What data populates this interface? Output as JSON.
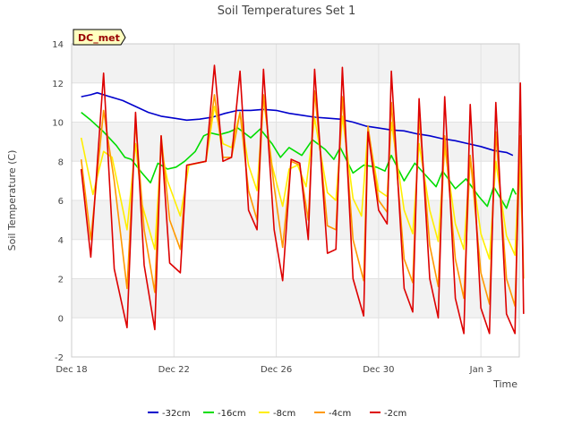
{
  "chart_data": {
    "type": "line",
    "title": "Soil Temperatures Set 1",
    "xlabel": "Time",
    "ylabel": "Soil Temperature (C)",
    "annotation": "DC_met",
    "xlim": [
      "2022-12-18 00:00",
      "2023-01-04 12:00"
    ],
    "ylim": [
      -2,
      14
    ],
    "yticks": [
      -2,
      0,
      2,
      4,
      6,
      8,
      10,
      12,
      14
    ],
    "xticks": [
      {
        "x": "2022-12-18 00:00",
        "label": "Dec 18"
      },
      {
        "x": "2022-12-22 00:00",
        "label": "Dec 22"
      },
      {
        "x": "2022-12-26 00:00",
        "label": "Dec 26"
      },
      {
        "x": "2022-12-30 00:00",
        "label": "Dec 30"
      },
      {
        "x": "2023-01-03 00:00",
        "label": "Jan 3"
      }
    ],
    "grid": true,
    "legend_position": "bottom",
    "series": [
      {
        "name": "-32cm",
        "color": "#0000cc",
        "points": [
          [
            "2022-12-18 09:00",
            11.3
          ],
          [
            "2022-12-18 18:00",
            11.4
          ],
          [
            "2022-12-19 00:00",
            11.5
          ],
          [
            "2022-12-19 12:00",
            11.3
          ],
          [
            "2022-12-20 00:00",
            11.1
          ],
          [
            "2022-12-20 12:00",
            10.8
          ],
          [
            "2022-12-21 00:00",
            10.5
          ],
          [
            "2022-12-21 12:00",
            10.3
          ],
          [
            "2022-12-22 00:00",
            10.2
          ],
          [
            "2022-12-22 12:00",
            10.1
          ],
          [
            "2022-12-23 00:00",
            10.15
          ],
          [
            "2022-12-23 12:00",
            10.25
          ],
          [
            "2022-12-24 00:00",
            10.45
          ],
          [
            "2022-12-24 12:00",
            10.6
          ],
          [
            "2022-12-25 00:00",
            10.6
          ],
          [
            "2022-12-25 12:00",
            10.65
          ],
          [
            "2022-12-26 00:00",
            10.6
          ],
          [
            "2022-12-26 12:00",
            10.45
          ],
          [
            "2022-12-27 00:00",
            10.35
          ],
          [
            "2022-12-27 12:00",
            10.25
          ],
          [
            "2022-12-28 00:00",
            10.2
          ],
          [
            "2022-12-28 12:00",
            10.15
          ],
          [
            "2022-12-29 00:00",
            10.0
          ],
          [
            "2022-12-29 12:00",
            9.8
          ],
          [
            "2022-12-30 00:00",
            9.7
          ],
          [
            "2022-12-30 12:00",
            9.6
          ],
          [
            "2022-12-31 00:00",
            9.55
          ],
          [
            "2022-12-31 12:00",
            9.4
          ],
          [
            "2023-01-01 00:00",
            9.3
          ],
          [
            "2023-01-01 12:00",
            9.15
          ],
          [
            "2023-01-02 00:00",
            9.05
          ],
          [
            "2023-01-02 12:00",
            8.9
          ],
          [
            "2023-01-03 00:00",
            8.75
          ],
          [
            "2023-01-03 12:00",
            8.55
          ],
          [
            "2023-01-04 00:00",
            8.45
          ],
          [
            "2023-01-04 06:00",
            8.3
          ]
        ]
      },
      {
        "name": "-16cm",
        "color": "#00dd00",
        "points": [
          [
            "2022-12-18 09:00",
            10.5
          ],
          [
            "2022-12-18 18:00",
            10.1
          ],
          [
            "2022-12-19 06:00",
            9.5
          ],
          [
            "2022-12-19 18:00",
            8.8
          ],
          [
            "2022-12-20 02:00",
            8.2
          ],
          [
            "2022-12-20 08:00",
            8.1
          ],
          [
            "2022-12-20 18:00",
            7.4
          ],
          [
            "2022-12-21 02:00",
            6.9
          ],
          [
            "2022-12-21 09:00",
            7.9
          ],
          [
            "2022-12-21 18:00",
            7.6
          ],
          [
            "2022-12-22 02:00",
            7.7
          ],
          [
            "2022-12-22 10:00",
            8.0
          ],
          [
            "2022-12-22 20:00",
            8.5
          ],
          [
            "2022-12-23 04:00",
            9.3
          ],
          [
            "2022-12-23 10:00",
            9.45
          ],
          [
            "2022-12-23 18:00",
            9.35
          ],
          [
            "2022-12-24 04:00",
            9.5
          ],
          [
            "2022-12-24 12:00",
            9.7
          ],
          [
            "2022-12-25 00:00",
            9.2
          ],
          [
            "2022-12-25 09:00",
            9.65
          ],
          [
            "2022-12-25 20:00",
            8.9
          ],
          [
            "2022-12-26 04:00",
            8.2
          ],
          [
            "2022-12-26 12:00",
            8.7
          ],
          [
            "2022-12-27 00:00",
            8.3
          ],
          [
            "2022-12-27 10:00",
            9.1
          ],
          [
            "2022-12-27 22:00",
            8.6
          ],
          [
            "2022-12-28 06:00",
            8.1
          ],
          [
            "2022-12-28 12:00",
            8.7
          ],
          [
            "2022-12-29 00:00",
            7.4
          ],
          [
            "2022-12-29 10:00",
            7.8
          ],
          [
            "2022-12-29 22:00",
            7.7
          ],
          [
            "2022-12-30 06:00",
            7.5
          ],
          [
            "2022-12-30 12:00",
            8.3
          ],
          [
            "2022-12-31 00:00",
            7.0
          ],
          [
            "2022-12-31 10:00",
            7.9
          ],
          [
            "2022-12-31 20:00",
            7.3
          ],
          [
            "2023-01-01 06:00",
            6.7
          ],
          [
            "2023-01-01 12:00",
            7.5
          ],
          [
            "2023-01-02 00:00",
            6.6
          ],
          [
            "2023-01-02 10:00",
            7.1
          ],
          [
            "2023-01-02 22:00",
            6.2
          ],
          [
            "2023-01-03 06:00",
            5.7
          ],
          [
            "2023-01-03 12:00",
            6.7
          ],
          [
            "2023-01-04 00:00",
            5.6
          ],
          [
            "2023-01-04 06:00",
            6.6
          ],
          [
            "2023-01-04 09:00",
            6.3
          ]
        ]
      },
      {
        "name": "-8cm",
        "color": "#ffee00",
        "points": [
          [
            "2022-12-18 09:00",
            9.2
          ],
          [
            "2022-12-18 20:00",
            6.3
          ],
          [
            "2022-12-19 06:00",
            8.5
          ],
          [
            "2022-12-19 14:00",
            8.2
          ],
          [
            "2022-12-20 04:00",
            4.5
          ],
          [
            "2022-12-20 12:00",
            8.9
          ],
          [
            "2022-12-20 18:00",
            5.8
          ],
          [
            "2022-12-21 06:00",
            3.5
          ],
          [
            "2022-12-21 12:00",
            8.7
          ],
          [
            "2022-12-21 18:00",
            7.0
          ],
          [
            "2022-12-22 06:00",
            5.2
          ],
          [
            "2022-12-22 14:00",
            7.8
          ],
          [
            "2022-12-23 06:00",
            8.0
          ],
          [
            "2022-12-23 14:00",
            10.8
          ],
          [
            "2022-12-23 22:00",
            8.9
          ],
          [
            "2022-12-24 06:00",
            8.7
          ],
          [
            "2022-12-24 14:00",
            10.5
          ],
          [
            "2022-12-24 22:00",
            7.8
          ],
          [
            "2022-12-25 06:00",
            6.5
          ],
          [
            "2022-12-25 12:00",
            11.2
          ],
          [
            "2022-12-25 20:00",
            7.8
          ],
          [
            "2022-12-26 06:00",
            5.7
          ],
          [
            "2022-12-26 12:00",
            7.6
          ],
          [
            "2022-12-26 20:00",
            7.8
          ],
          [
            "2022-12-27 04:00",
            6.7
          ],
          [
            "2022-12-27 12:00",
            10.2
          ],
          [
            "2022-12-28 00:00",
            6.4
          ],
          [
            "2022-12-28 08:00",
            6.0
          ],
          [
            "2022-12-28 14:00",
            10.3
          ],
          [
            "2022-12-29 00:00",
            6.1
          ],
          [
            "2022-12-29 08:00",
            5.2
          ],
          [
            "2022-12-29 14:00",
            9.6
          ],
          [
            "2022-12-30 00:00",
            6.5
          ],
          [
            "2022-12-30 08:00",
            6.2
          ],
          [
            "2022-12-30 12:00",
            10.0
          ],
          [
            "2022-12-31 00:00",
            5.5
          ],
          [
            "2022-12-31 08:00",
            4.3
          ],
          [
            "2022-12-31 14:00",
            8.9
          ],
          [
            "2023-01-01 00:00",
            5.5
          ],
          [
            "2023-01-01 08:00",
            3.9
          ],
          [
            "2023-01-01 14:00",
            8.7
          ],
          [
            "2023-01-02 00:00",
            4.8
          ],
          [
            "2023-01-02 08:00",
            3.5
          ],
          [
            "2023-01-02 14:00",
            8.2
          ],
          [
            "2023-01-03 00:00",
            4.3
          ],
          [
            "2023-01-03 08:00",
            3.0
          ],
          [
            "2023-01-03 14:00",
            8.0
          ],
          [
            "2023-01-04 00:00",
            4.2
          ],
          [
            "2023-01-04 08:00",
            3.2
          ],
          [
            "2023-01-04 12:00",
            8.2
          ],
          [
            "2023-01-04 15:00",
            4.3
          ]
        ]
      },
      {
        "name": "-4cm",
        "color": "#ff9900",
        "points": [
          [
            "2022-12-18 09:00",
            8.1
          ],
          [
            "2022-12-18 18:00",
            4.0
          ],
          [
            "2022-12-19 06:00",
            10.6
          ],
          [
            "2022-12-19 16:00",
            7.0
          ],
          [
            "2022-12-20 04:00",
            1.5
          ],
          [
            "2022-12-20 12:00",
            10.0
          ],
          [
            "2022-12-20 20:00",
            4.5
          ],
          [
            "2022-12-21 06:00",
            1.3
          ],
          [
            "2022-12-21 12:00",
            9.3
          ],
          [
            "2022-12-21 20:00",
            5.0
          ],
          [
            "2022-12-22 06:00",
            3.5
          ],
          [
            "2022-12-22 12:00",
            7.8
          ],
          [
            "2022-12-23 06:00",
            8.0
          ],
          [
            "2022-12-23 14:00",
            11.4
          ],
          [
            "2022-12-23 22:00",
            8.2
          ],
          [
            "2022-12-24 06:00",
            8.2
          ],
          [
            "2022-12-24 14:00",
            10.5
          ],
          [
            "2022-12-24 22:00",
            6.5
          ],
          [
            "2022-12-25 06:00",
            5.0
          ],
          [
            "2022-12-25 12:00",
            11.4
          ],
          [
            "2022-12-25 22:00",
            6.7
          ],
          [
            "2022-12-26 06:00",
            3.6
          ],
          [
            "2022-12-26 14:00",
            8.0
          ],
          [
            "2022-12-26 22:00",
            7.8
          ],
          [
            "2022-12-27 06:00",
            5.0
          ],
          [
            "2022-12-27 12:00",
            11.6
          ],
          [
            "2022-12-28 00:00",
            4.7
          ],
          [
            "2022-12-28 08:00",
            4.5
          ],
          [
            "2022-12-28 14:00",
            11.3
          ],
          [
            "2022-12-29 00:00",
            4.0
          ],
          [
            "2022-12-29 10:00",
            1.9
          ],
          [
            "2022-12-29 14:00",
            9.8
          ],
          [
            "2022-12-30 00:00",
            6.0
          ],
          [
            "2022-12-30 08:00",
            5.4
          ],
          [
            "2022-12-30 12:00",
            11.0
          ],
          [
            "2022-12-31 00:00",
            3.0
          ],
          [
            "2022-12-31 08:00",
            1.8
          ],
          [
            "2022-12-31 14:00",
            10.3
          ],
          [
            "2023-01-01 00:00",
            3.7
          ],
          [
            "2023-01-01 08:00",
            1.6
          ],
          [
            "2023-01-01 14:00",
            9.3
          ],
          [
            "2023-01-02 00:00",
            3.0
          ],
          [
            "2023-01-02 08:00",
            1.0
          ],
          [
            "2023-01-02 14:00",
            8.3
          ],
          [
            "2023-01-03 00:00",
            2.3
          ],
          [
            "2023-01-03 08:00",
            0.7
          ],
          [
            "2023-01-03 14:00",
            9.5
          ],
          [
            "2023-01-04 00:00",
            2.0
          ],
          [
            "2023-01-04 08:00",
            0.6
          ],
          [
            "2023-01-04 13:00",
            9.3
          ],
          [
            "2023-01-04 16:00",
            2.0
          ]
        ]
      },
      {
        "name": "-2cm",
        "color": "#dd0000",
        "points": [
          [
            "2022-12-18 09:00",
            7.6
          ],
          [
            "2022-12-18 18:00",
            3.1
          ],
          [
            "2022-12-19 06:00",
            12.5
          ],
          [
            "2022-12-19 16:00",
            2.5
          ],
          [
            "2022-12-20 04:00",
            -0.5
          ],
          [
            "2022-12-20 12:00",
            10.5
          ],
          [
            "2022-12-20 20:00",
            2.7
          ],
          [
            "2022-12-21 06:00",
            -0.6
          ],
          [
            "2022-12-21 12:00",
            9.3
          ],
          [
            "2022-12-21 20:00",
            2.8
          ],
          [
            "2022-12-22 06:00",
            2.3
          ],
          [
            "2022-12-22 12:00",
            7.8
          ],
          [
            "2022-12-23 06:00",
            8.0
          ],
          [
            "2022-12-23 14:00",
            12.9
          ],
          [
            "2022-12-23 22:00",
            8.0
          ],
          [
            "2022-12-24 06:00",
            8.2
          ],
          [
            "2022-12-24 14:00",
            12.6
          ],
          [
            "2022-12-24 22:00",
            5.5
          ],
          [
            "2022-12-25 06:00",
            4.5
          ],
          [
            "2022-12-25 12:00",
            12.7
          ],
          [
            "2022-12-25 22:00",
            4.5
          ],
          [
            "2022-12-26 06:00",
            1.9
          ],
          [
            "2022-12-26 14:00",
            8.1
          ],
          [
            "2022-12-26 22:00",
            7.9
          ],
          [
            "2022-12-27 06:00",
            4.0
          ],
          [
            "2022-12-27 12:00",
            12.7
          ],
          [
            "2022-12-28 00:00",
            3.3
          ],
          [
            "2022-12-28 08:00",
            3.5
          ],
          [
            "2022-12-28 14:00",
            12.8
          ],
          [
            "2022-12-29 00:00",
            2.0
          ],
          [
            "2022-12-29 10:00",
            0.1
          ],
          [
            "2022-12-29 14:00",
            9.5
          ],
          [
            "2022-12-30 00:00",
            5.5
          ],
          [
            "2022-12-30 08:00",
            4.8
          ],
          [
            "2022-12-30 12:00",
            12.6
          ],
          [
            "2022-12-31 00:00",
            1.5
          ],
          [
            "2022-12-31 08:00",
            0.3
          ],
          [
            "2022-12-31 14:00",
            11.2
          ],
          [
            "2023-01-01 00:00",
            2.0
          ],
          [
            "2023-01-01 08:00",
            0.0
          ],
          [
            "2023-01-01 14:00",
            11.3
          ],
          [
            "2023-01-02 00:00",
            1.0
          ],
          [
            "2023-01-02 08:00",
            -0.8
          ],
          [
            "2023-01-02 14:00",
            10.9
          ],
          [
            "2023-01-03 00:00",
            0.5
          ],
          [
            "2023-01-03 08:00",
            -0.8
          ],
          [
            "2023-01-03 14:00",
            11.0
          ],
          [
            "2023-01-04 00:00",
            0.2
          ],
          [
            "2023-01-04 08:00",
            -0.8
          ],
          [
            "2023-01-04 13:00",
            12.0
          ],
          [
            "2023-01-04 16:00",
            0.2
          ]
        ]
      }
    ]
  }
}
